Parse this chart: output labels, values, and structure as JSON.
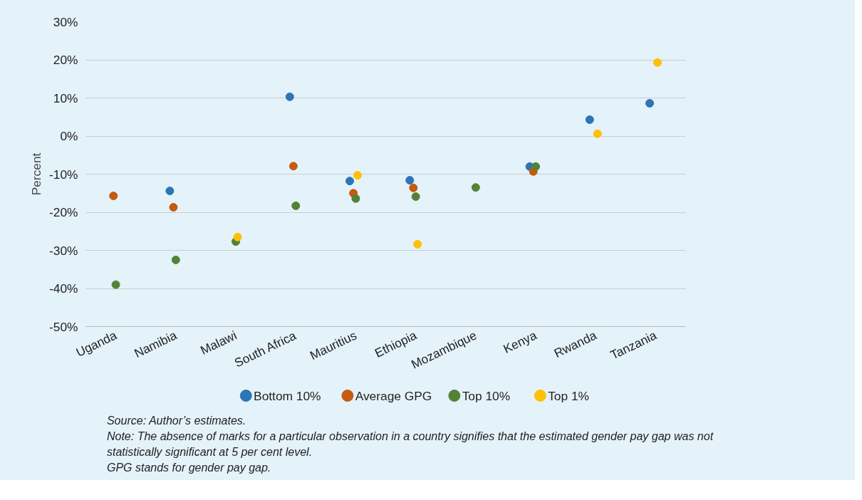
{
  "chart_data": {
    "type": "scatter",
    "ylabel": "Percent",
    "categories": [
      "Uganda",
      "Namibia",
      "Malawi",
      "South Africa",
      "Mauritius",
      "Ethiopia",
      "Mozambique",
      "Kenya",
      "Rwanda",
      "Tanzania"
    ],
    "series": [
      {
        "name": "Bottom 10%",
        "color": "#2e75b6",
        "values": [
          null,
          -14.4,
          null,
          10.3,
          -11.8,
          -11.6,
          null,
          -8.0,
          4.3,
          8.6
        ]
      },
      {
        "name": "Average GPG",
        "color": "#c55a11",
        "values": [
          -15.7,
          -18.7,
          null,
          -7.9,
          -15.0,
          -13.6,
          null,
          -9.3,
          null,
          null
        ]
      },
      {
        "name": "Top 10%",
        "color": "#548235",
        "values": [
          -39.0,
          -32.5,
          -27.7,
          -18.3,
          -16.4,
          -15.9,
          -13.5,
          -8.0,
          null,
          null
        ]
      },
      {
        "name": "Top 1%",
        "color": "#ffc000",
        "values": [
          null,
          null,
          -26.5,
          null,
          -10.3,
          -28.4,
          null,
          null,
          0.6,
          19.3
        ]
      }
    ],
    "ylim": [
      -50,
      30
    ],
    "yticks": [
      {
        "value": -50,
        "label": "-50%"
      },
      {
        "value": -40,
        "label": "-40%"
      },
      {
        "value": -30,
        "label": "-30%"
      },
      {
        "value": -20,
        "label": "-20%"
      },
      {
        "value": -10,
        "label": "-10%"
      },
      {
        "value": 0,
        "label": "0%"
      },
      {
        "value": 10,
        "label": "10%"
      },
      {
        "value": 20,
        "label": "20%"
      },
      {
        "value": 30,
        "label": "30%"
      }
    ],
    "grid": "y",
    "legend": "bottom",
    "marker": "circle",
    "annotations": [
      "Source: Author’s estimates.",
      "Note:  The absence of marks for a particular observation in a country signifies that the estimated gender pay gap was not statistically significant at 5 per cent level.",
      "GPG stands for gender pay gap."
    ]
  }
}
